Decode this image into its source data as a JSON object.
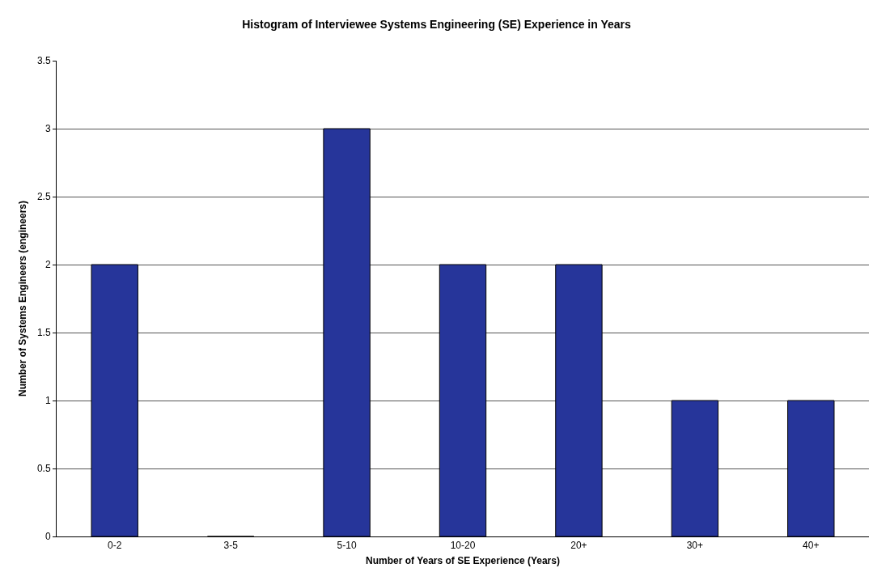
{
  "chart_data": {
    "type": "bar",
    "title": "Histogram of Interviewee Systems Engineering (SE) Experience in Years",
    "xlabel": "Number of Years of SE Experience (Years)",
    "ylabel": "Number of Systems Engineers (engineers)",
    "categories": [
      "0-2",
      "3-5",
      "5-10",
      "10-20",
      "20+",
      "30+",
      "40+"
    ],
    "values": [
      2,
      0,
      3,
      2,
      2,
      1,
      1
    ],
    "color": "#26359a",
    "ylim": [
      0,
      3.5
    ],
    "yticks": [
      0,
      0.5,
      1,
      1.5,
      2,
      2.5,
      3,
      3.5
    ],
    "grid": "y"
  }
}
